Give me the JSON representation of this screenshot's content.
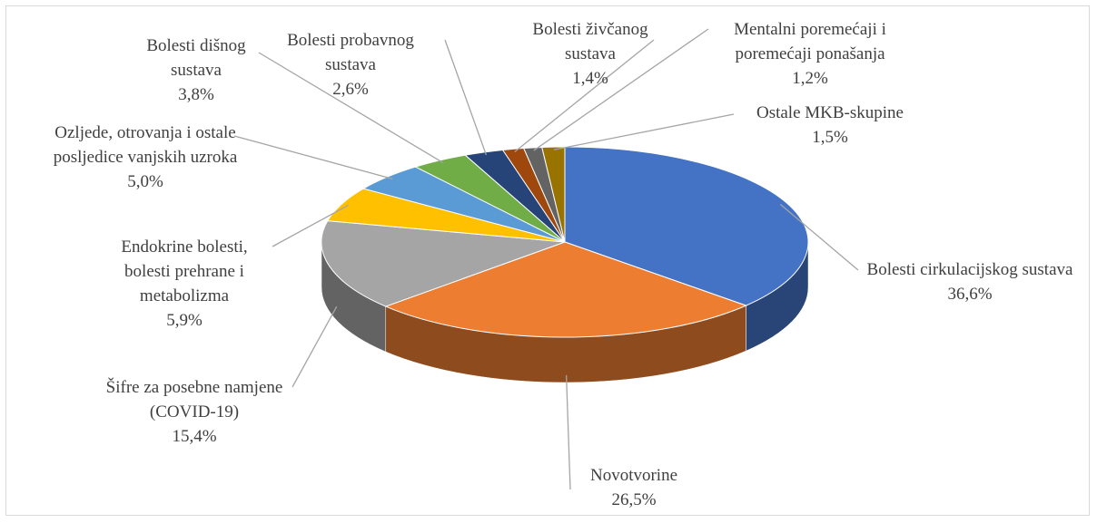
{
  "chart_data": {
    "type": "pie",
    "three_d": true,
    "categories": [
      "Bolesti cirkulacijskog sustava",
      "Novotvorine",
      "Šifre za posebne namjene (COVID-19)",
      "Endokrine bolesti, bolesti prehrane i metabolizma",
      "Ozljede, otrovanja i ostale posljedice vanjskih uzroka",
      "Bolesti dišnog sustava",
      "Bolesti probavnog sustava",
      "Bolesti živčanog sustava",
      "Mentalni poremećaji i poremećaji ponašanja",
      "Ostale MKB-skupine"
    ],
    "values": [
      36.6,
      26.5,
      15.4,
      5.9,
      5.0,
      3.8,
      2.6,
      1.4,
      1.2,
      1.5
    ],
    "value_labels": [
      "36,6%",
      "26,5%",
      "15,4%",
      "5,9%",
      "5,0%",
      "3,8%",
      "2,6%",
      "1,4%",
      "1,2%",
      "1,5%"
    ],
    "colors": [
      "#4472c4",
      "#ed7d31",
      "#a5a5a5",
      "#ffc000",
      "#5b9bd5",
      "#70ad47",
      "#264478",
      "#9e480e",
      "#636363",
      "#997300"
    ]
  }
}
